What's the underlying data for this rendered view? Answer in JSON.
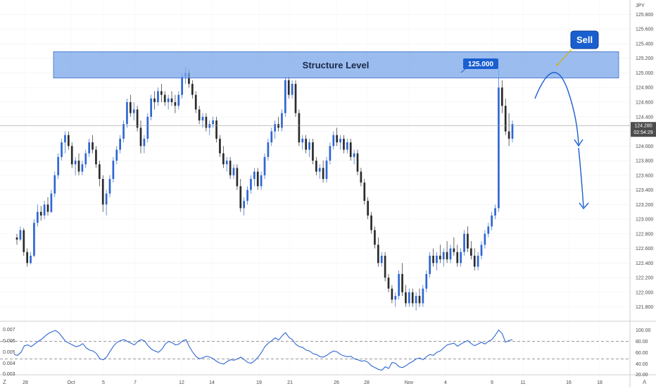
{
  "chart_data": {
    "type": "candlestick",
    "currency_label": "JPY",
    "price_axis": {
      "ticks": [
        "125.800",
        "125.600",
        "125.400",
        "125.200",
        "125.000",
        "124.800",
        "124.600",
        "124.400",
        "124.200",
        "124.000",
        "123.800",
        "123.600",
        "123.400",
        "123.200",
        "123.000",
        "122.800",
        "122.600",
        "122.400",
        "122.200",
        "122.000",
        "121.800"
      ],
      "range": [
        121.7,
        125.92
      ]
    },
    "time_axis": {
      "labels": [
        "28",
        "Oct",
        "5",
        "7",
        "12",
        "14",
        "19",
        "21",
        "26",
        "28",
        "Nov",
        "4",
        "9",
        "11",
        "16",
        "18"
      ]
    },
    "current_price": {
      "value": "124.280",
      "countdown": "02:54:29"
    },
    "annotations": {
      "zone_label": "Structure Level",
      "zone_range": [
        124.93,
        125.29
      ],
      "price_callout": "125.000",
      "signal_label": "Sell"
    },
    "candles": [
      [
        122.75,
        122.8,
        122.65,
        122.72
      ],
      [
        122.72,
        122.9,
        122.7,
        122.85
      ],
      [
        122.85,
        122.88,
        122.5,
        122.55
      ],
      [
        122.55,
        122.6,
        122.35,
        122.4
      ],
      [
        122.4,
        122.55,
        122.38,
        122.5
      ],
      [
        122.5,
        123.0,
        122.48,
        122.95
      ],
      [
        122.95,
        123.2,
        122.9,
        123.1
      ],
      [
        123.1,
        123.18,
        122.98,
        123.05
      ],
      [
        123.05,
        123.25,
        123.0,
        123.2
      ],
      [
        123.2,
        123.3,
        123.05,
        123.1
      ],
      [
        123.1,
        123.4,
        123.08,
        123.35
      ],
      [
        123.35,
        123.65,
        123.3,
        123.6
      ],
      [
        123.6,
        123.9,
        123.55,
        123.85
      ],
      [
        123.85,
        124.1,
        123.8,
        124.05
      ],
      [
        124.05,
        124.2,
        123.9,
        124.15
      ],
      [
        124.15,
        124.2,
        123.95,
        124.0
      ],
      [
        124.0,
        124.05,
        123.7,
        123.75
      ],
      [
        123.75,
        123.85,
        123.6,
        123.8
      ],
      [
        123.8,
        123.9,
        123.6,
        123.65
      ],
      [
        123.65,
        123.8,
        123.6,
        123.75
      ],
      [
        123.75,
        123.95,
        123.7,
        123.9
      ],
      [
        123.9,
        124.1,
        123.85,
        124.05
      ],
      [
        124.05,
        124.15,
        123.9,
        123.95
      ],
      [
        123.95,
        124.0,
        123.7,
        123.75
      ],
      [
        123.75,
        123.8,
        123.45,
        123.55
      ],
      [
        123.55,
        123.6,
        123.1,
        123.2
      ],
      [
        123.2,
        123.4,
        123.05,
        123.35
      ],
      [
        123.35,
        123.6,
        123.3,
        123.55
      ],
      [
        123.55,
        123.85,
        123.5,
        123.8
      ],
      [
        123.8,
        124.0,
        123.75,
        123.95
      ],
      [
        123.95,
        124.15,
        123.9,
        124.1
      ],
      [
        124.1,
        124.35,
        124.05,
        124.3
      ],
      [
        124.3,
        124.65,
        124.25,
        124.6
      ],
      [
        124.6,
        124.7,
        124.4,
        124.45
      ],
      [
        124.45,
        124.6,
        124.35,
        124.5
      ],
      [
        124.5,
        124.55,
        124.2,
        124.25
      ],
      [
        124.25,
        124.35,
        123.9,
        124.0
      ],
      [
        124.0,
        124.15,
        123.9,
        124.1
      ],
      [
        124.1,
        124.45,
        124.05,
        124.4
      ],
      [
        124.4,
        124.7,
        124.35,
        124.65
      ],
      [
        124.65,
        124.75,
        124.5,
        124.6
      ],
      [
        124.6,
        124.8,
        124.55,
        124.75
      ],
      [
        124.75,
        124.85,
        124.6,
        124.7
      ],
      [
        124.7,
        124.75,
        124.55,
        124.6
      ],
      [
        124.6,
        124.7,
        124.5,
        124.65
      ],
      [
        124.65,
        124.75,
        124.55,
        124.6
      ],
      [
        124.6,
        124.7,
        124.45,
        124.55
      ],
      [
        124.55,
        124.75,
        124.5,
        124.7
      ],
      [
        124.7,
        125.0,
        124.65,
        124.95
      ],
      [
        124.95,
        125.08,
        124.85,
        125.0
      ],
      [
        125.0,
        125.05,
        124.8,
        124.85
      ],
      [
        124.85,
        124.9,
        124.65,
        124.7
      ],
      [
        124.7,
        124.75,
        124.45,
        124.5
      ],
      [
        124.5,
        124.55,
        124.3,
        124.35
      ],
      [
        124.35,
        124.45,
        124.25,
        124.4
      ],
      [
        124.4,
        124.45,
        124.2,
        124.25
      ],
      [
        124.25,
        124.35,
        124.15,
        124.3
      ],
      [
        124.3,
        124.4,
        124.25,
        124.35
      ],
      [
        124.35,
        124.4,
        124.05,
        124.1
      ],
      [
        124.1,
        124.15,
        123.85,
        123.9
      ],
      [
        123.9,
        124.0,
        123.7,
        123.75
      ],
      [
        123.75,
        123.85,
        123.65,
        123.8
      ],
      [
        123.8,
        123.85,
        123.55,
        123.6
      ],
      [
        123.6,
        123.75,
        123.55,
        123.7
      ],
      [
        123.7,
        123.75,
        123.4,
        123.45
      ],
      [
        123.45,
        123.55,
        123.1,
        123.15
      ],
      [
        123.15,
        123.3,
        123.05,
        123.25
      ],
      [
        123.25,
        123.45,
        123.2,
        123.4
      ],
      [
        123.4,
        123.6,
        123.35,
        123.55
      ],
      [
        123.55,
        123.7,
        123.45,
        123.65
      ],
      [
        123.65,
        123.7,
        123.4,
        123.45
      ],
      [
        123.45,
        123.65,
        123.4,
        123.6
      ],
      [
        123.6,
        123.9,
        123.55,
        123.85
      ],
      [
        123.85,
        124.1,
        123.8,
        124.05
      ],
      [
        124.05,
        124.25,
        124.0,
        124.2
      ],
      [
        124.2,
        124.35,
        124.1,
        124.3
      ],
      [
        124.3,
        124.4,
        124.2,
        124.25
      ],
      [
        124.25,
        124.5,
        124.2,
        124.45
      ],
      [
        124.45,
        124.95,
        124.4,
        124.9
      ],
      [
        124.9,
        124.95,
        124.65,
        124.7
      ],
      [
        124.7,
        124.9,
        124.65,
        124.85
      ],
      [
        124.85,
        124.9,
        124.4,
        124.45
      ],
      [
        124.45,
        124.5,
        124.0,
        124.05
      ],
      [
        124.05,
        124.15,
        123.95,
        124.1
      ],
      [
        124.1,
        124.15,
        123.9,
        123.95
      ],
      [
        123.95,
        124.1,
        123.85,
        124.05
      ],
      [
        124.05,
        124.1,
        123.75,
        123.8
      ],
      [
        123.8,
        123.85,
        123.6,
        123.65
      ],
      [
        123.65,
        123.75,
        123.55,
        123.7
      ],
      [
        123.7,
        123.8,
        123.5,
        123.55
      ],
      [
        123.55,
        123.85,
        123.5,
        123.8
      ],
      [
        123.8,
        124.05,
        123.75,
        124.0
      ],
      [
        124.0,
        124.2,
        123.95,
        124.15
      ],
      [
        124.15,
        124.25,
        124.0,
        124.05
      ],
      [
        124.05,
        124.15,
        123.95,
        124.1
      ],
      [
        124.1,
        124.15,
        123.9,
        123.95
      ],
      [
        123.95,
        124.1,
        123.9,
        124.05
      ],
      [
        124.05,
        124.1,
        123.8,
        123.85
      ],
      [
        123.85,
        123.95,
        123.75,
        123.9
      ],
      [
        123.9,
        123.95,
        123.6,
        123.65
      ],
      [
        123.65,
        123.7,
        123.45,
        123.5
      ],
      [
        123.5,
        123.55,
        123.2,
        123.25
      ],
      [
        123.25,
        123.3,
        123.0,
        123.05
      ],
      [
        123.05,
        123.1,
        122.8,
        122.85
      ],
      [
        122.85,
        122.9,
        122.6,
        122.65
      ],
      [
        122.65,
        122.75,
        122.35,
        122.4
      ],
      [
        122.4,
        122.55,
        122.35,
        122.5
      ],
      [
        122.5,
        122.55,
        122.15,
        122.2
      ],
      [
        122.2,
        122.25,
        122.0,
        122.05
      ],
      [
        122.05,
        122.1,
        121.85,
        121.9
      ],
      [
        121.9,
        122.0,
        121.8,
        121.95
      ],
      [
        121.95,
        122.3,
        121.9,
        122.25
      ],
      [
        122.25,
        122.4,
        121.95,
        122.0
      ],
      [
        122.0,
        122.1,
        121.8,
        121.85
      ],
      [
        121.85,
        122.05,
        121.8,
        122.0
      ],
      [
        122.0,
        122.05,
        121.8,
        121.85
      ],
      [
        121.85,
        122.0,
        121.75,
        121.95
      ],
      [
        121.95,
        122.05,
        121.8,
        121.85
      ],
      [
        121.85,
        122.1,
        121.8,
        122.05
      ],
      [
        122.05,
        122.3,
        122.0,
        122.25
      ],
      [
        122.25,
        122.55,
        122.2,
        122.5
      ],
      [
        122.5,
        122.6,
        122.35,
        122.4
      ],
      [
        122.4,
        122.55,
        122.3,
        122.5
      ],
      [
        122.5,
        122.65,
        122.4,
        122.45
      ],
      [
        122.45,
        122.6,
        122.35,
        122.55
      ],
      [
        122.55,
        122.7,
        122.4,
        122.45
      ],
      [
        122.45,
        122.65,
        122.4,
        122.6
      ],
      [
        122.6,
        122.75,
        122.5,
        122.55
      ],
      [
        122.55,
        122.65,
        122.35,
        122.4
      ],
      [
        122.4,
        122.6,
        122.35,
        122.55
      ],
      [
        122.55,
        122.85,
        122.5,
        122.8
      ],
      [
        122.8,
        122.9,
        122.55,
        122.6
      ],
      [
        122.6,
        122.7,
        122.45,
        122.5
      ],
      [
        122.5,
        122.6,
        122.3,
        122.35
      ],
      [
        122.35,
        122.55,
        122.3,
        122.5
      ],
      [
        122.5,
        122.7,
        122.45,
        122.65
      ],
      [
        122.65,
        122.85,
        122.6,
        122.8
      ],
      [
        122.8,
        122.95,
        122.75,
        122.9
      ],
      [
        122.9,
        123.1,
        122.85,
        123.05
      ],
      [
        123.05,
        123.2,
        123.0,
        123.15
      ],
      [
        123.15,
        125.05,
        123.1,
        124.8
      ],
      [
        124.8,
        124.9,
        124.45,
        124.55
      ],
      [
        124.55,
        124.65,
        124.15,
        124.2
      ],
      [
        124.2,
        124.45,
        124.0,
        124.1
      ],
      [
        124.1,
        124.35,
        124.05,
        124.3
      ]
    ],
    "oscillator": {
      "left_ticks": [
        "0.007",
        "0.006",
        "0.005",
        "0.004",
        "0.003"
      ],
      "right_ticks": [
        "100.00",
        "80.00",
        "60.00",
        "40.00",
        "20.00"
      ],
      "upper_level": 70,
      "lower_level": 30,
      "values": [
        40,
        38,
        45,
        60,
        62,
        58,
        64,
        70,
        75,
        82,
        88,
        92,
        95,
        90,
        80,
        70,
        66,
        62,
        58,
        60,
        65,
        55,
        50,
        48,
        42,
        30,
        28,
        35,
        48,
        60,
        68,
        72,
        74,
        70,
        66,
        62,
        70,
        74,
        71,
        60,
        52,
        48,
        45,
        52,
        64,
        70,
        67,
        62,
        64,
        71,
        74,
        58,
        45,
        35,
        30,
        33,
        36,
        34,
        30,
        24,
        20,
        18,
        24,
        28,
        27,
        30,
        34,
        28,
        22,
        20,
        26,
        34,
        45,
        58,
        66,
        72,
        78,
        73,
        83,
        90,
        79,
        74,
        63,
        58,
        56,
        50,
        48,
        42,
        40,
        35,
        34,
        38,
        44,
        48,
        46,
        40,
        37,
        35,
        36,
        30,
        28,
        25,
        26,
        22,
        14,
        10,
        6,
        4,
        12,
        8,
        22,
        20,
        12,
        10,
        14,
        20,
        24,
        30,
        32,
        28,
        35,
        40,
        38,
        45,
        48,
        55,
        62,
        64,
        66,
        59,
        64,
        68,
        72,
        65,
        60,
        64,
        68,
        64,
        70,
        74,
        84,
        96,
        88,
        68,
        72,
        74
      ]
    }
  }
}
